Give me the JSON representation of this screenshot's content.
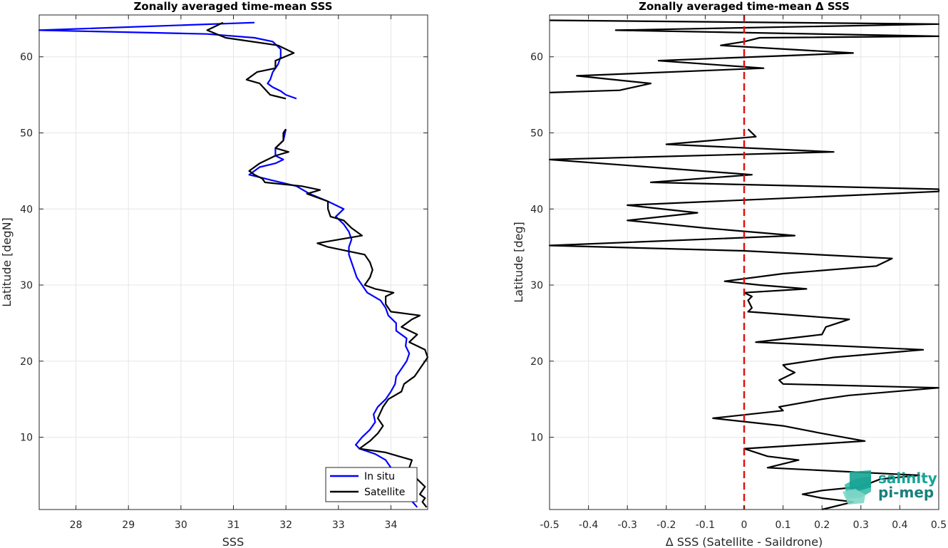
{
  "chart_data": [
    {
      "type": "line",
      "title": "Zonally averaged time-mean SSS",
      "xlabel": "SSS",
      "ylabel": "Latitude [degN]",
      "xlim": [
        27.3,
        34.7
      ],
      "ylim": [
        0.5,
        65.5
      ],
      "xticks": [
        28,
        29,
        30,
        31,
        32,
        33,
        34
      ],
      "yticks": [
        10,
        20,
        30,
        40,
        50,
        60
      ],
      "grid": true,
      "legend_position": "bottom-right",
      "series": [
        {
          "name": "In situ",
          "color": "#0000ff",
          "segments": [
            [
              [
                34.5,
                0.8
              ],
              [
                34.35,
                2
              ],
              [
                34.3,
                3
              ],
              [
                34.2,
                4
              ],
              [
                34.05,
                5
              ],
              [
                34.0,
                6
              ],
              [
                33.9,
                7
              ],
              [
                33.7,
                7.8
              ],
              [
                33.4,
                8.5
              ],
              [
                33.33,
                9
              ],
              [
                33.45,
                10
              ],
              [
                33.6,
                11
              ],
              [
                33.7,
                12
              ],
              [
                33.67,
                13
              ],
              [
                33.75,
                14
              ],
              [
                33.9,
                15
              ],
              [
                34.0,
                16
              ],
              [
                34.08,
                17
              ],
              [
                34.1,
                18
              ],
              [
                34.2,
                19
              ],
              [
                34.3,
                20
              ],
              [
                34.35,
                21
              ],
              [
                34.28,
                22
              ],
              [
                34.3,
                23
              ],
              [
                34.1,
                24
              ],
              [
                34.1,
                25
              ],
              [
                33.95,
                26
              ],
              [
                33.9,
                27
              ],
              [
                33.8,
                28
              ],
              [
                33.55,
                29
              ],
              [
                33.45,
                30
              ],
              [
                33.35,
                31
              ],
              [
                33.3,
                32
              ],
              [
                33.25,
                33
              ],
              [
                33.2,
                34
              ],
              [
                33.2,
                35
              ],
              [
                33.25,
                36
              ],
              [
                33.2,
                37
              ],
              [
                33.1,
                38
              ],
              [
                32.95,
                39
              ],
              [
                33.1,
                40
              ],
              [
                32.8,
                41
              ],
              [
                32.45,
                42
              ],
              [
                32.2,
                43
              ],
              [
                31.9,
                43.5
              ],
              [
                31.6,
                44
              ],
              [
                31.3,
                44.5
              ],
              [
                31.5,
                45.5
              ],
              [
                31.8,
                46
              ],
              [
                31.95,
                46.5
              ],
              [
                31.8,
                47
              ],
              [
                31.8,
                48
              ],
              [
                31.95,
                49
              ],
              [
                32.0,
                50.5
              ]
            ],
            [
              [
                32.2,
                54.5
              ],
              [
                32.0,
                55
              ],
              [
                31.9,
                55.5
              ],
              [
                31.75,
                56
              ],
              [
                31.65,
                56.5
              ],
              [
                31.7,
                57
              ],
              [
                31.75,
                58
              ],
              [
                31.85,
                59
              ],
              [
                31.9,
                60
              ],
              [
                31.9,
                61
              ],
              [
                31.75,
                62
              ],
              [
                31.4,
                62.5
              ],
              [
                30.5,
                63
              ],
              [
                27.3,
                63.5
              ],
              [
                31.4,
                64.5
              ]
            ]
          ]
        },
        {
          "name": "Satellite",
          "color": "#000000",
          "segments": [
            [
              [
                34.68,
                0.8
              ],
              [
                34.6,
                1.5
              ],
              [
                34.65,
                2
              ],
              [
                34.55,
                2.5
              ],
              [
                34.65,
                3.5
              ],
              [
                34.5,
                4.5
              ],
              [
                34.45,
                5
              ],
              [
                34.35,
                6
              ],
              [
                34.4,
                7
              ],
              [
                34.15,
                7.5
              ],
              [
                33.9,
                8
              ],
              [
                33.4,
                8.5
              ],
              [
                33.6,
                9.5
              ],
              [
                33.75,
                10.5
              ],
              [
                33.85,
                11.5
              ],
              [
                33.75,
                12.5
              ],
              [
                33.85,
                14
              ],
              [
                33.95,
                15
              ],
              [
                34.2,
                16
              ],
              [
                34.25,
                17
              ],
              [
                34.45,
                18
              ],
              [
                34.55,
                19
              ],
              [
                34.7,
                20.5
              ],
              [
                34.65,
                21.5
              ],
              [
                34.35,
                22.5
              ],
              [
                34.5,
                23.5
              ],
              [
                34.2,
                24.5
              ],
              [
                34.4,
                25.5
              ],
              [
                34.55,
                26
              ],
              [
                34.0,
                26.5
              ],
              [
                33.9,
                27.5
              ],
              [
                33.9,
                28.5
              ],
              [
                34.05,
                29
              ],
              [
                33.7,
                29.5
              ],
              [
                33.5,
                30
              ],
              [
                33.6,
                31
              ],
              [
                33.65,
                32
              ],
              [
                33.6,
                33
              ],
              [
                33.5,
                34
              ],
              [
                32.8,
                35
              ],
              [
                32.6,
                35.5
              ],
              [
                33.45,
                36.5
              ],
              [
                33.25,
                37.5
              ],
              [
                33.1,
                38.5
              ],
              [
                32.85,
                39
              ],
              [
                32.8,
                40
              ],
              [
                32.8,
                41
              ],
              [
                32.4,
                42
              ],
              [
                32.65,
                42.5
              ],
              [
                32.3,
                43
              ],
              [
                31.6,
                43.5
              ],
              [
                31.55,
                44
              ],
              [
                31.4,
                44.5
              ],
              [
                31.3,
                45
              ],
              [
                31.5,
                46
              ],
              [
                31.8,
                47
              ],
              [
                32.05,
                47.5
              ],
              [
                31.8,
                48
              ],
              [
                31.95,
                49
              ],
              [
                31.95,
                50
              ],
              [
                32.0,
                50.5
              ]
            ],
            [
              [
                32.0,
                54.5
              ],
              [
                31.7,
                55
              ],
              [
                31.5,
                56.5
              ],
              [
                31.25,
                57
              ],
              [
                31.45,
                58
              ],
              [
                31.8,
                58.5
              ],
              [
                31.8,
                59.5
              ],
              [
                32.15,
                60.5
              ],
              [
                31.85,
                61.5
              ],
              [
                30.85,
                62.5
              ],
              [
                30.5,
                63.5
              ],
              [
                30.8,
                64.5
              ]
            ]
          ]
        }
      ]
    },
    {
      "type": "line",
      "title": "Zonally averaged time-mean Δ SSS",
      "xlabel": "Δ SSS (Satellite - Saildrone)",
      "ylabel": "Latitude [deg]",
      "xlim": [
        -0.5,
        0.5
      ],
      "ylim": [
        0.5,
        65.5
      ],
      "xticks": [
        -0.5,
        -0.4,
        -0.3,
        -0.2,
        -0.1,
        0,
        0.1,
        0.2,
        0.3,
        0.4,
        0.5
      ],
      "yticks": [
        10,
        20,
        30,
        40,
        50,
        60
      ],
      "grid": true,
      "reference_line": {
        "x": 0,
        "color": "#e01010",
        "style": "dashed"
      },
      "series": [
        {
          "color": "#000000",
          "segments": [
            [
              [
                0.2,
                0.5
              ],
              [
                0.28,
                1.5
              ],
              [
                0.2,
                2
              ],
              [
                0.15,
                2.5
              ],
              [
                0.2,
                3
              ],
              [
                0.3,
                3.5
              ],
              [
                0.35,
                4.5
              ],
              [
                0.45,
                5
              ],
              [
                0.06,
                6
              ],
              [
                0.14,
                7
              ],
              [
                0.06,
                7.5
              ],
              [
                0.0,
                8.5
              ],
              [
                0.31,
                9.5
              ],
              [
                0.2,
                10.5
              ],
              [
                0.1,
                11.5
              ],
              [
                -0.08,
                12.5
              ],
              [
                0.1,
                13.5
              ],
              [
                0.09,
                14
              ],
              [
                0.2,
                15
              ],
              [
                0.27,
                15.5
              ],
              [
                0.5,
                16.5
              ],
              [
                0.1,
                17
              ],
              [
                0.09,
                17.5
              ],
              [
                0.13,
                18.5
              ],
              [
                0.11,
                19
              ],
              [
                0.1,
                19.5
              ],
              [
                0.23,
                20.5
              ],
              [
                0.46,
                21.5
              ],
              [
                0.03,
                22.5
              ],
              [
                0.2,
                23.5
              ],
              [
                0.21,
                24.5
              ],
              [
                0.27,
                25.5
              ],
              [
                0.01,
                26.5
              ],
              [
                0.02,
                27
              ],
              [
                0.01,
                28
              ],
              [
                0.02,
                28.5
              ],
              [
                0.0,
                29
              ],
              [
                0.16,
                29.5
              ],
              [
                0.04,
                30
              ],
              [
                -0.05,
                30.5
              ],
              [
                0.1,
                31.5
              ],
              [
                0.34,
                32.5
              ],
              [
                0.38,
                33.5
              ],
              [
                0.0,
                34.5
              ],
              [
                -0.5,
                35.2
              ],
              [
                0.13,
                36.5
              ],
              [
                -0.1,
                37.5
              ],
              [
                -0.3,
                38.5
              ],
              [
                -0.12,
                39.5
              ],
              [
                -0.3,
                40.5
              ],
              [
                0.5,
                42.3
              ],
              [
                0.5,
                42.6
              ],
              [
                -0.24,
                43.5
              ],
              [
                0.02,
                44.5
              ],
              [
                -0.5,
                46.5
              ],
              [
                0.23,
                47.5
              ],
              [
                -0.2,
                48.5
              ],
              [
                0.03,
                49.5
              ],
              [
                0.01,
                50.5
              ]
            ],
            [
              [
                -0.5,
                55.3
              ],
              [
                -0.32,
                55.6
              ],
              [
                -0.24,
                56.5
              ],
              [
                -0.43,
                57.5
              ],
              [
                0.05,
                58.5
              ],
              [
                -0.22,
                59.5
              ],
              [
                0.28,
                60.5
              ],
              [
                -0.06,
                61.5
              ],
              [
                0.0,
                62
              ],
              [
                0.04,
                62.5
              ],
              [
                0.5,
                62.7
              ],
              [
                -0.33,
                63.5
              ],
              [
                0.5,
                64.3
              ],
              [
                -0.5,
                64.8
              ]
            ]
          ]
        }
      ]
    }
  ],
  "legend": {
    "items": [
      "In situ",
      "Satellite"
    ]
  },
  "logo": {
    "line1": "salinity",
    "line2": "pi-mep"
  }
}
